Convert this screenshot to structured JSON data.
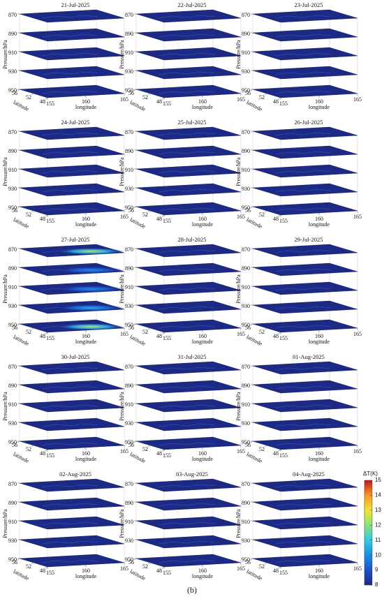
{
  "caption": "(b)",
  "chart_data": [
    {
      "type": "slice3d",
      "title": "21-Jul-2025",
      "zlabel": "Pressure/hPa",
      "ylabel": "latitude",
      "xlabel": "longitude",
      "xlim": [
        155,
        165
      ],
      "xticks": [
        155,
        160,
        165
      ],
      "ylim": [
        48,
        56
      ],
      "yticks": [
        56,
        52,
        48
      ],
      "zlim": [
        870,
        950
      ],
      "zticks": [
        870,
        890,
        910,
        930,
        950
      ],
      "slice_max": [
        8,
        8,
        8,
        8,
        8
      ]
    },
    {
      "type": "slice3d",
      "title": "22-Jul-2025",
      "zlabel": "Pressure/hPa",
      "ylabel": "latitude",
      "xlabel": "longitude",
      "xlim": [
        155,
        165
      ],
      "xticks": [
        155,
        160,
        165
      ],
      "ylim": [
        48,
        56
      ],
      "yticks": [
        56,
        52,
        48
      ],
      "zlim": [
        870,
        950
      ],
      "zticks": [
        870,
        890,
        910,
        930,
        950
      ],
      "slice_max": [
        8,
        8,
        8,
        8,
        8
      ]
    },
    {
      "type": "slice3d",
      "title": "23-Jul-2025",
      "zlabel": "Pressure/hPa",
      "ylabel": "latitude",
      "xlabel": "longitude",
      "xlim": [
        155,
        165
      ],
      "xticks": [
        155,
        160,
        165
      ],
      "ylim": [
        48,
        56
      ],
      "yticks": [
        56,
        52,
        48
      ],
      "zlim": [
        870,
        950
      ],
      "zticks": [
        870,
        890,
        910,
        930,
        950
      ],
      "slice_max": [
        8,
        8,
        8,
        8,
        8
      ]
    },
    {
      "type": "slice3d",
      "title": "24-Jul-2025",
      "zlabel": "Pressure/hPa",
      "ylabel": "latitude",
      "xlabel": "longitude",
      "xlim": [
        155,
        165
      ],
      "xticks": [
        155,
        160,
        165
      ],
      "ylim": [
        48,
        56
      ],
      "yticks": [
        56,
        52,
        48
      ],
      "zlim": [
        870,
        950
      ],
      "zticks": [
        870,
        890,
        910,
        930,
        950
      ],
      "slice_max": [
        8,
        8,
        8,
        8,
        8
      ]
    },
    {
      "type": "slice3d",
      "title": "25-Jul-2025",
      "zlabel": "Pressure/hPa",
      "ylabel": "latitude",
      "xlabel": "longitude",
      "xlim": [
        155,
        165
      ],
      "xticks": [
        155,
        160,
        165
      ],
      "ylim": [
        48,
        56
      ],
      "yticks": [
        56,
        52,
        48
      ],
      "zlim": [
        870,
        950
      ],
      "zticks": [
        870,
        890,
        910,
        930,
        950
      ],
      "slice_max": [
        8,
        8,
        8,
        8,
        8
      ]
    },
    {
      "type": "slice3d",
      "title": "26-Jul-2025",
      "zlabel": "Pressure/hPa",
      "ylabel": "latitude",
      "xlabel": "longitude",
      "xlim": [
        155,
        165
      ],
      "xticks": [
        155,
        160,
        165
      ],
      "ylim": [
        48,
        56
      ],
      "yticks": [
        56,
        52,
        48
      ],
      "zlim": [
        870,
        950
      ],
      "zticks": [
        870,
        890,
        910,
        930,
        950
      ],
      "slice_max": [
        8,
        8,
        8,
        8,
        8
      ]
    },
    {
      "type": "slice3d",
      "title": "27-Jul-2025",
      "zlabel": "Pressure/hPa",
      "ylabel": "latitude",
      "xlabel": "longitude",
      "xlim": [
        155,
        165
      ],
      "xticks": [
        155,
        160,
        165
      ],
      "ylim": [
        48,
        56
      ],
      "yticks": [
        56,
        52,
        48
      ],
      "zlim": [
        870,
        950
      ],
      "zticks": [
        870,
        890,
        910,
        930,
        950
      ],
      "slice_max": [
        12.5,
        10,
        10,
        10.5,
        12.5
      ]
    },
    {
      "type": "slice3d",
      "title": "28-Jul-2025",
      "zlabel": "Pressure/hPa",
      "ylabel": "latitude",
      "xlabel": "longitude",
      "xlim": [
        155,
        165
      ],
      "xticks": [
        155,
        160,
        165
      ],
      "ylim": [
        48,
        56
      ],
      "yticks": [
        56,
        52,
        48
      ],
      "zlim": [
        870,
        950
      ],
      "zticks": [
        870,
        890,
        910,
        930,
        950
      ],
      "slice_max": [
        8,
        8,
        8,
        8,
        8
      ]
    },
    {
      "type": "slice3d",
      "title": "29-Jul-2025",
      "zlabel": "Pressure/hPa",
      "ylabel": "latitude",
      "xlabel": "longitude",
      "xlim": [
        155,
        165
      ],
      "xticks": [
        155,
        160,
        165
      ],
      "ylim": [
        48,
        56
      ],
      "yticks": [
        56,
        52,
        48
      ],
      "zlim": [
        870,
        950
      ],
      "zticks": [
        870,
        890,
        910,
        930,
        950
      ],
      "slice_max": [
        8,
        8,
        8,
        8,
        8
      ]
    },
    {
      "type": "slice3d",
      "title": "30-Jul-2025",
      "zlabel": "Pressure/hPa",
      "ylabel": "latitude",
      "xlabel": "longitude",
      "xlim": [
        155,
        165
      ],
      "xticks": [
        155,
        160,
        165
      ],
      "ylim": [
        48,
        56
      ],
      "yticks": [
        56,
        52,
        48
      ],
      "zlim": [
        870,
        950
      ],
      "zticks": [
        870,
        890,
        910,
        930,
        950
      ],
      "slice_max": [
        8,
        8,
        8,
        8,
        8
      ]
    },
    {
      "type": "slice3d",
      "title": "31-Jul-2025",
      "zlabel": "Pressure/hPa",
      "ylabel": "latitude",
      "xlabel": "longitude",
      "xlim": [
        155,
        165
      ],
      "xticks": [
        155,
        160,
        165
      ],
      "ylim": [
        48,
        56
      ],
      "yticks": [
        56,
        52,
        48
      ],
      "zlim": [
        870,
        950
      ],
      "zticks": [
        870,
        890,
        910,
        930,
        950
      ],
      "slice_max": [
        8,
        8,
        8,
        8,
        8
      ]
    },
    {
      "type": "slice3d",
      "title": "01-Aug-2025",
      "zlabel": "Pressure/hPa",
      "ylabel": "latitude",
      "xlabel": "longitude",
      "xlim": [
        155,
        165
      ],
      "xticks": [
        155,
        160,
        165
      ],
      "ylim": [
        48,
        56
      ],
      "yticks": [
        56,
        52,
        48
      ],
      "zlim": [
        870,
        950
      ],
      "zticks": [
        870,
        890,
        910,
        930,
        950
      ],
      "slice_max": [
        8,
        8,
        8,
        8,
        8
      ]
    },
    {
      "type": "slice3d",
      "title": "02-Aug-2025",
      "zlabel": "Pressure/hPa",
      "ylabel": "latitude",
      "xlabel": "longitude",
      "xlim": [
        155,
        165
      ],
      "xticks": [
        155,
        160,
        165
      ],
      "ylim": [
        48,
        56
      ],
      "yticks": [
        56,
        52,
        48
      ],
      "zlim": [
        870,
        950
      ],
      "zticks": [
        870,
        890,
        910,
        930,
        950
      ],
      "slice_max": [
        8,
        8,
        8,
        8,
        8
      ]
    },
    {
      "type": "slice3d",
      "title": "03-Aug-2025",
      "zlabel": "Pressure/hPa",
      "ylabel": "latitude",
      "xlabel": "longitude",
      "xlim": [
        155,
        165
      ],
      "xticks": [
        155,
        160,
        165
      ],
      "ylim": [
        48,
        56
      ],
      "yticks": [
        56,
        52,
        48
      ],
      "zlim": [
        870,
        950
      ],
      "zticks": [
        870,
        890,
        910,
        930,
        950
      ],
      "slice_max": [
        8,
        8,
        8,
        8,
        8
      ]
    },
    {
      "type": "slice3d",
      "title": "04-Aug-2025",
      "zlabel": "Pressure/hPa",
      "ylabel": "latitude",
      "xlabel": "longitude",
      "xlim": [
        155,
        165
      ],
      "xticks": [
        155,
        160,
        165
      ],
      "ylim": [
        48,
        56
      ],
      "yticks": [
        56,
        52,
        48
      ],
      "zlim": [
        870,
        950
      ],
      "zticks": [
        870,
        890,
        910,
        930,
        950
      ],
      "slice_max": [
        8,
        8,
        8,
        8,
        8
      ]
    },
    {
      "type": "colorbar",
      "title": "ΔT(K)",
      "clim": [
        8,
        15
      ],
      "ticks": [
        8,
        9,
        10,
        11,
        12,
        13,
        14,
        15
      ],
      "colors": [
        "#1c2a86",
        "#1f4fc4",
        "#1e8ee0",
        "#35c8e6",
        "#8fe07a",
        "#f2e23a",
        "#f59a23",
        "#c0161c"
      ]
    }
  ]
}
